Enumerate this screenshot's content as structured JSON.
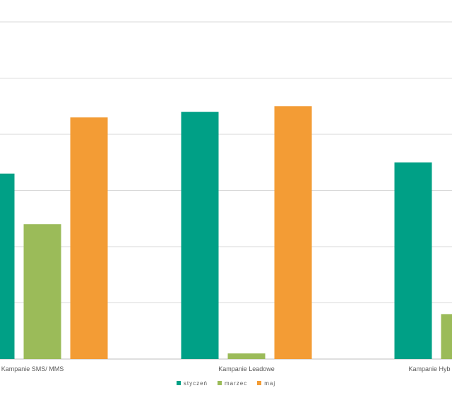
{
  "chart_data": {
    "type": "bar",
    "title": "",
    "xlabel": "",
    "ylabel": "",
    "categories": [
      "Kampanie SMS/ MMS",
      "Kampanie Leadowe",
      "Kampanie Hyb"
    ],
    "series": [
      {
        "name": "styczeń",
        "color": "#00A086",
        "values": [
          3.3,
          4.4,
          3.5
        ]
      },
      {
        "name": "marzec",
        "color": "#9BBB59",
        "values": [
          2.4,
          0.1,
          0.8
        ]
      },
      {
        "name": "maj",
        "color": "#F39C35",
        "values": [
          4.3,
          4.5,
          null
        ]
      }
    ],
    "ylim": [
      0,
      6
    ],
    "grid": true,
    "legend_position": "bottom"
  },
  "legend": {
    "items": [
      {
        "label": "styczeń",
        "color": "#00A086"
      },
      {
        "label": "marzec",
        "color": "#9BBB59"
      },
      {
        "label": "maj",
        "color": "#F39C35"
      }
    ]
  }
}
